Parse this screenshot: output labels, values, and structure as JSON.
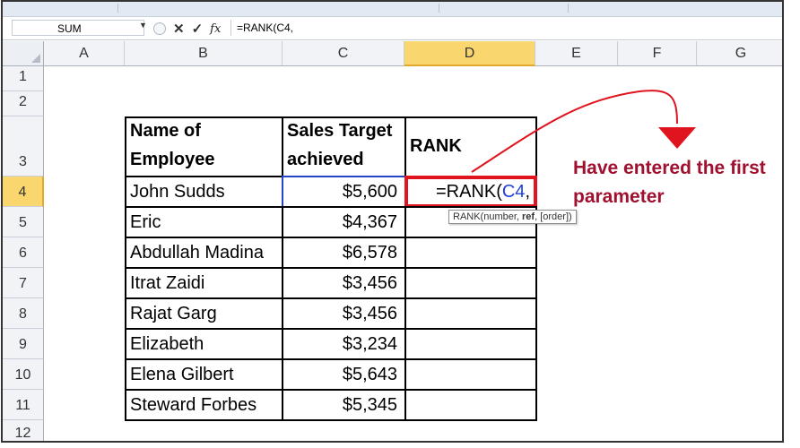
{
  "namebox": {
    "value": "SUM"
  },
  "formula_bar": {
    "content": "=RANK(C4,"
  },
  "columns": [
    "A",
    "B",
    "C",
    "D",
    "E",
    "F",
    "G"
  ],
  "rows": [
    "1",
    "2",
    "3",
    "4",
    "5",
    "6",
    "7",
    "8",
    "9",
    "10",
    "11",
    "12"
  ],
  "table": {
    "headers": {
      "name": "Name of Employee",
      "sales": "Sales Target achieved",
      "rank": "RANK"
    },
    "rows": [
      {
        "name": "John Sudds",
        "sales": "$5,600"
      },
      {
        "name": "Eric",
        "sales": "$4,367"
      },
      {
        "name": "Abdullah Madina",
        "sales": "$6,578"
      },
      {
        "name": "Itrat Zaidi",
        "sales": "$3,456"
      },
      {
        "name": "Rajat Garg",
        "sales": "$3,456"
      },
      {
        "name": "Elizabeth",
        "sales": "$3,234"
      },
      {
        "name": "Elena Gilbert",
        "sales": "$5,643"
      },
      {
        "name": "Steward Forbes",
        "sales": "$5,345"
      }
    ],
    "active_cell": {
      "prefix": "=RANK(",
      "ref": "C4",
      "suffix": ","
    }
  },
  "tooltip": {
    "before": "RANK(number, ",
    "bold": "ref",
    "after": ", [order])"
  },
  "annotation": {
    "text": "Have entered the first parameter"
  },
  "icons": {
    "cancel": "cancel-x-icon",
    "enter": "checkmark-icon",
    "function": "fx-icon",
    "dropdown": "dropdown-arrow-icon"
  },
  "colors": {
    "accent_red": "#e0141e",
    "annotation_text": "#a0102f",
    "cell_ref_blue": "#1f3fd6",
    "selected_header": "#f9d66e"
  }
}
